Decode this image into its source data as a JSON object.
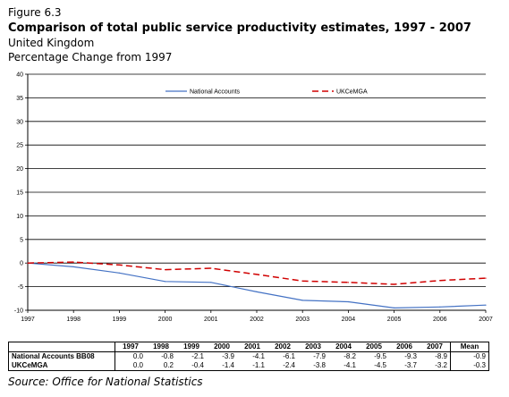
{
  "figure_label": "Figure 6.3",
  "title": "Comparison of total public service productivity estimates, 1997 - 2007",
  "subtitle1": "United Kingdom",
  "subtitle2": "Percentage Change from 1997",
  "source": "Source: Office for National Statistics",
  "chart_data": {
    "type": "line",
    "x": [
      "1997",
      "1998",
      "1999",
      "2000",
      "2001",
      "2002",
      "2003",
      "2004",
      "2005",
      "2006",
      "2007"
    ],
    "series": [
      {
        "name": "National Accounts",
        "values": [
          0.0,
          -0.8,
          -2.1,
          -3.9,
          -4.1,
          -6.1,
          -7.9,
          -8.2,
          -9.5,
          -9.3,
          -8.9
        ],
        "color": "#4472c4",
        "style": "solid"
      },
      {
        "name": "UKCeMGA",
        "values": [
          0.0,
          0.2,
          -0.4,
          -1.4,
          -1.1,
          -2.4,
          -3.8,
          -4.1,
          -4.5,
          -3.7,
          -3.2
        ],
        "color": "#d00000",
        "style": "dashed"
      }
    ],
    "ylim": [
      -10,
      40
    ],
    "yticks": [
      "-10",
      "-5",
      "0",
      "5",
      "10",
      "15",
      "20",
      "25",
      "30",
      "35",
      "40"
    ],
    "grid": true,
    "legend_position": "top"
  },
  "table": {
    "headers": [
      "1997",
      "1998",
      "1999",
      "2000",
      "2001",
      "2002",
      "2003",
      "2004",
      "2005",
      "2006",
      "2007",
      "Mean"
    ],
    "rows": [
      {
        "label": "National Accounts BB08",
        "values": [
          "0.0",
          "-0.8",
          "-2.1",
          "-3.9",
          "-4.1",
          "-6.1",
          "-7.9",
          "-8.2",
          "-9.5",
          "-9.3",
          "-8.9",
          "-0.9"
        ]
      },
      {
        "label": "UKCeMGA",
        "values": [
          "0.0",
          "0.2",
          "-0.4",
          "-1.4",
          "-1.1",
          "-2.4",
          "-3.8",
          "-4.1",
          "-4.5",
          "-3.7",
          "-3.2",
          "-0.3"
        ]
      }
    ]
  }
}
